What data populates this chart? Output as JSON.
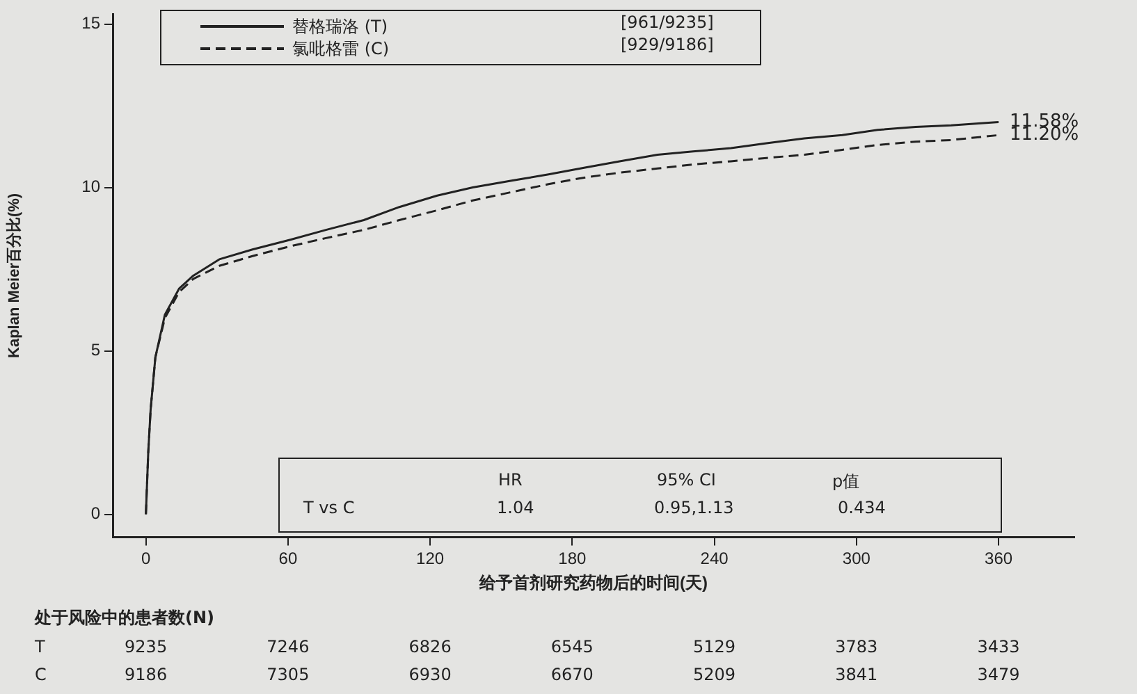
{
  "chart_data": {
    "type": "line",
    "ylabel": "Kaplan Meier百分比(%)",
    "xlabel": "给予首剂研究药物后的时间(天)",
    "xlim": [
      -14,
      392
    ],
    "xticks": [
      0,
      60,
      120,
      180,
      240,
      300,
      360
    ],
    "ylim": [
      -0.7,
      15.3
    ],
    "yticks": [
      0,
      5,
      10,
      15
    ],
    "grid": false,
    "legend": "top",
    "marker": "none",
    "series": [
      {
        "name": "替格瑞洛 (T)",
        "color": "#222222",
        "line_style": "solid",
        "x": [
          0,
          1,
          2,
          4,
          8,
          14,
          20,
          31,
          45,
          61,
          76,
          92,
          107,
          123,
          138,
          154,
          170,
          185,
          200,
          216,
          231,
          247,
          262,
          278,
          294,
          309,
          325,
          340,
          360
        ],
        "values": [
          0,
          1.9,
          3.2,
          4.8,
          6.1,
          6.9,
          7.3,
          7.8,
          8.1,
          8.4,
          8.7,
          9.0,
          9.4,
          9.75,
          10.0,
          10.2,
          10.4,
          10.6,
          10.8,
          11.0,
          11.1,
          11.2,
          11.35,
          11.5,
          11.6,
          11.76,
          11.85,
          11.9,
          12.0
        ]
      },
      {
        "name": "氯吡格雷 (C)",
        "color": "#222222",
        "line_style": "dashed",
        "x": [
          0,
          1,
          2,
          4,
          8,
          14,
          20,
          31,
          45,
          61,
          76,
          92,
          107,
          123,
          138,
          154,
          170,
          185,
          200,
          216,
          231,
          247,
          262,
          278,
          294,
          309,
          325,
          340,
          360
        ],
        "values": [
          0,
          1.9,
          3.2,
          4.8,
          6.0,
          6.8,
          7.2,
          7.6,
          7.9,
          8.2,
          8.45,
          8.7,
          9.0,
          9.3,
          9.6,
          9.85,
          10.1,
          10.3,
          10.45,
          10.58,
          10.7,
          10.8,
          10.9,
          11.0,
          11.15,
          11.3,
          11.4,
          11.45,
          11.6
        ]
      }
    ],
    "annotations": [
      "[961/9235]",
      "[929/9186]",
      {
        "text": "11.58%",
        "x": 360,
        "y": 12.0
      },
      {
        "text": "11.20%",
        "x": 360,
        "y": 11.6
      },
      "HR",
      "95% CI",
      "p值",
      "T   vs   C",
      "1.04",
      "0.95,1.13",
      "0.434",
      "处于风险中的患者数(N)",
      "T",
      "9235",
      "7246",
      "6826",
      "6545",
      "5129",
      "3783",
      "3433",
      "C",
      "9186",
      "7305",
      "6930",
      "6670",
      "5209",
      "3841",
      "3479"
    ]
  }
}
